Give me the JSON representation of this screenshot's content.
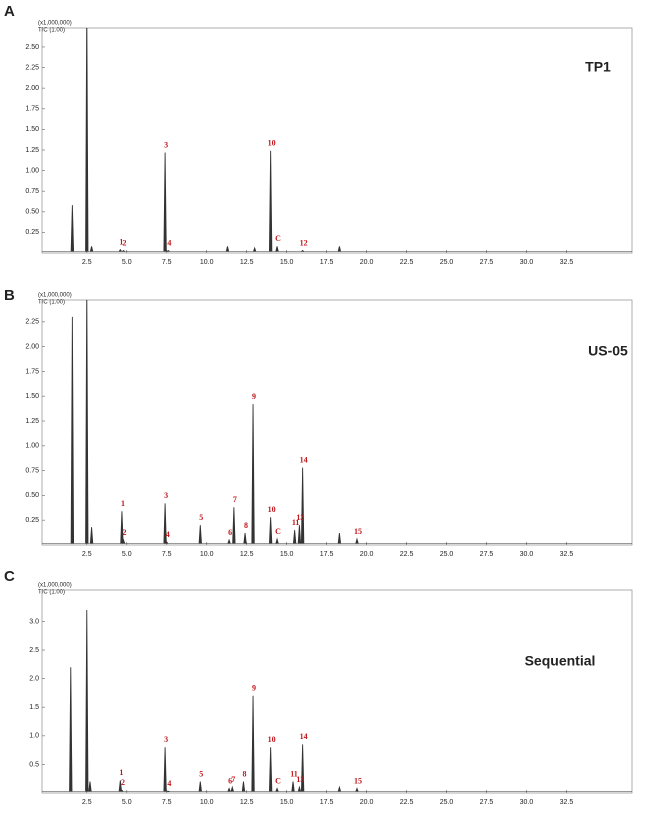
{
  "chart_data": [
    {
      "type": "chromatogram",
      "panel": "A",
      "scale_note": "(x1,000,000)",
      "trace_note": "TIC (1.00)",
      "sample": "TP1",
      "color": "#333333",
      "x": [
        1.6,
        2.5,
        2.8,
        4.6,
        4.8,
        7.4,
        7.6,
        11.3,
        13.0,
        14.0,
        14.4,
        16.0,
        18.3
      ],
      "values": [
        0.58,
        3.0,
        0.08,
        0.04,
        0.03,
        1.22,
        0.03,
        0.08,
        0.06,
        1.24,
        0.08,
        0.03,
        0.08
      ],
      "peak_labels": [
        null,
        null,
        null,
        "1",
        "2",
        "3",
        "4",
        null,
        null,
        "10",
        "C",
        "12",
        null
      ],
      "xlim": [
        -0.3,
        36.6
      ],
      "xticks": [
        2.5,
        {
          "value": 5,
          "label": "5.0"
        },
        7.5,
        {
          "value": 10,
          "label": "10.0"
        },
        12.5,
        {
          "value": 15,
          "label": "15.0"
        },
        17.5,
        {
          "value": 20,
          "label": "20.0"
        },
        22.5,
        {
          "value": 25,
          "label": "25.0"
        },
        27.5,
        {
          "value": 30,
          "label": "30.0"
        },
        32.5
      ],
      "ylim": [
        0,
        2.73
      ],
      "yticks": [
        0.25,
        {
          "value": 0.5,
          "label": "0.50"
        },
        0.75,
        {
          "value": 1,
          "label": "1.00"
        },
        1.25,
        {
          "value": 1.5,
          "label": "1.50"
        },
        1.75,
        {
          "value": 2,
          "label": "2.00"
        },
        2.25,
        {
          "value": 2.5,
          "label": "2.50"
        }
      ]
    },
    {
      "type": "chromatogram",
      "panel": "B",
      "scale_note": "(x1,000,000)",
      "trace_note": "TIC (1.00)",
      "sample": "US-05",
      "color": "#333333",
      "x": [
        1.6,
        2.5,
        2.8,
        4.7,
        4.8,
        7.4,
        7.5,
        9.6,
        11.4,
        11.7,
        12.4,
        12.9,
        14.0,
        14.4,
        15.5,
        15.8,
        16.0,
        18.3,
        19.4
      ],
      "values": [
        2.3,
        2.6,
        0.18,
        0.34,
        0.05,
        0.42,
        0.03,
        0.2,
        0.05,
        0.38,
        0.12,
        1.42,
        0.28,
        0.06,
        0.15,
        0.2,
        0.78,
        0.12,
        0.06
      ],
      "peak_labels": [
        null,
        null,
        null,
        "1",
        "2",
        "3",
        "4",
        "5",
        "6",
        "7",
        "8",
        "9",
        "10",
        "C",
        "11",
        "13",
        "14",
        null,
        "15"
      ],
      "xlim": [
        -0.3,
        36.6
      ],
      "xticks": [
        2.5,
        {
          "value": 5,
          "label": "5.0"
        },
        7.5,
        {
          "value": 10,
          "label": "10.0"
        },
        12.5,
        {
          "value": 15,
          "label": "15.0"
        },
        17.5,
        {
          "value": 20,
          "label": "20.0"
        },
        22.5,
        {
          "value": 25,
          "label": "25.0"
        },
        27.5,
        {
          "value": 30,
          "label": "30.0"
        },
        32.5
      ],
      "ylim": [
        0,
        2.47
      ],
      "yticks": [
        0.25,
        {
          "value": 0.5,
          "label": "0.50"
        },
        0.75,
        {
          "value": 1,
          "label": "1.00"
        },
        1.25,
        {
          "value": 1.5,
          "label": "1.50"
        },
        1.75,
        {
          "value": 2,
          "label": "2.00"
        },
        2.25
      ]
    },
    {
      "type": "chromatogram",
      "panel": "C",
      "scale_note": "(x1,000,000)",
      "trace_note": "TIC (1.00)",
      "sample": "Sequential",
      "color": "#333333",
      "x": [
        1.5,
        2.5,
        2.7,
        4.6,
        4.7,
        7.4,
        7.6,
        9.6,
        11.4,
        11.6,
        12.3,
        12.9,
        14.0,
        14.4,
        15.4,
        15.8,
        16.0,
        18.3,
        19.4
      ],
      "values": [
        2.2,
        3.2,
        0.2,
        0.22,
        0.05,
        0.8,
        0.03,
        0.2,
        0.08,
        0.1,
        0.2,
        1.7,
        0.8,
        0.08,
        0.2,
        0.1,
        0.85,
        0.1,
        0.08
      ],
      "peak_labels": [
        null,
        null,
        null,
        "1",
        "2",
        "3",
        "4",
        "5",
        "6",
        "7",
        "8",
        "9",
        "10",
        "C",
        "11",
        "13",
        "14",
        null,
        "15"
      ],
      "xlim": [
        -0.3,
        36.6
      ],
      "xticks": [
        2.5,
        {
          "value": 5,
          "label": "5.0"
        },
        7.5,
        {
          "value": 10,
          "label": "10.0"
        },
        12.5,
        {
          "value": 15,
          "label": "15.0"
        },
        17.5,
        {
          "value": 20,
          "label": "20.0"
        },
        22.5,
        {
          "value": 25,
          "label": "25.0"
        },
        27.5,
        {
          "value": 30,
          "label": "30.0"
        },
        32.5
      ],
      "ylim": [
        0,
        3.55
      ],
      "yticks": [
        0.5,
        {
          "value": 1,
          "label": "1.0"
        },
        1.5,
        {
          "value": 2,
          "label": "2.0"
        },
        2.5,
        {
          "value": 3,
          "label": "3.0"
        }
      ]
    }
  ]
}
